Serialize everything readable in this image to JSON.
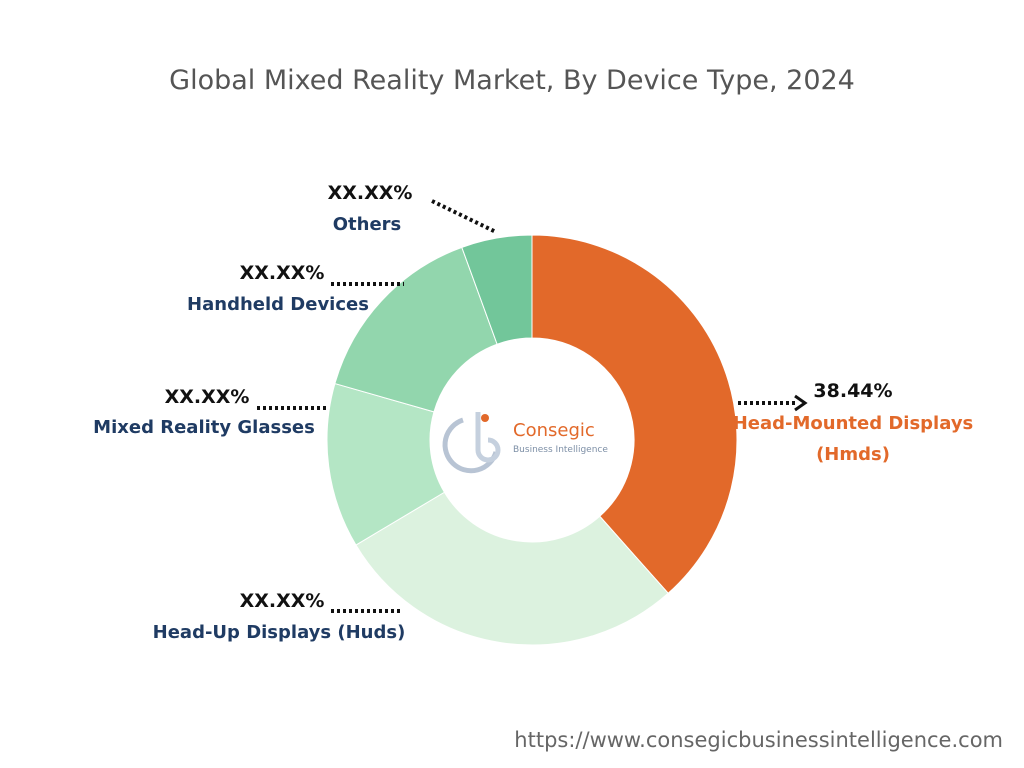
{
  "chart_data": {
    "type": "pie",
    "subtype": "donut",
    "title": "Global Mixed Reality Market, By Device Type, 2024",
    "segments": [
      {
        "name": "Head-Mounted Displays",
        "name_line2": "(Hmds)",
        "label_value": "38.44%",
        "value": 38.44,
        "color": "#e2692a"
      },
      {
        "name": "Head-Up Displays (Huds)",
        "label_value": "XX.XX%",
        "value": 28.0,
        "color": "#dcf2df"
      },
      {
        "name": "Mixed Reality Glasses",
        "label_value": "XX.XX%",
        "value": 13.0,
        "color": "#b4e6c5"
      },
      {
        "name": "Handheld Devices",
        "label_value": "XX.XX%",
        "value": 15.0,
        "color": "#92d6ad"
      },
      {
        "name": "Others",
        "label_value": "XX.XX%",
        "value": 5.56,
        "color": "#72c69a"
      }
    ],
    "legend": "none"
  },
  "watermark": {
    "brand": "Consegic",
    "subtitle": "Business Intelligence"
  },
  "footer": {
    "url": "https://www.consegicbusinessintelligence.com"
  }
}
